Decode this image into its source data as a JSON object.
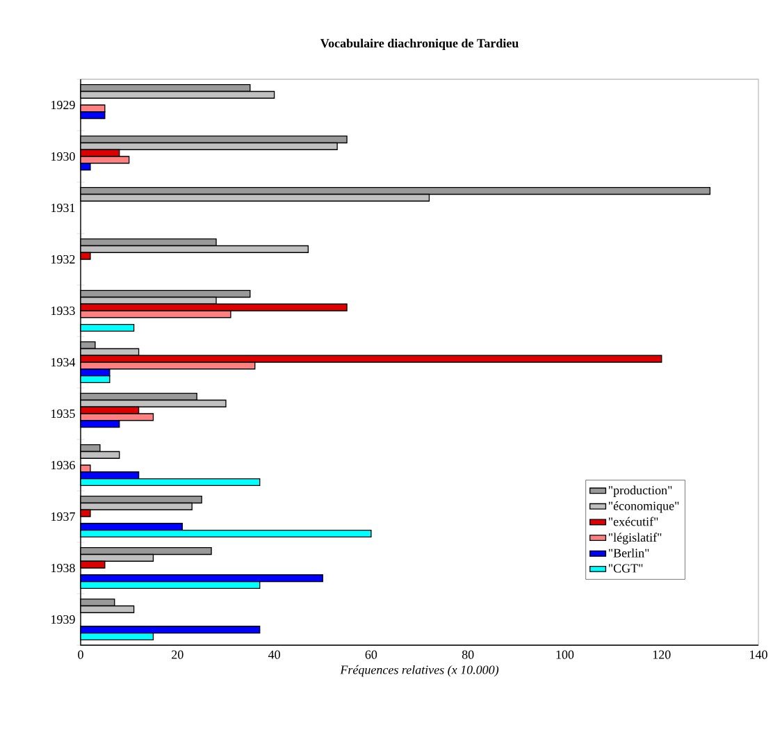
{
  "chart_data": {
    "type": "bar",
    "orientation": "horizontal",
    "title": "Vocabulaire diachronique de Tardieu",
    "xlabel": "Fréquences relatives (x 10.000)",
    "categories": [
      "1929",
      "1930",
      "1931",
      "1932",
      "1933",
      "1934",
      "1935",
      "1936",
      "1937",
      "1938",
      "1939"
    ],
    "series": [
      {
        "name": "\"production\"",
        "color": "#999999",
        "values": [
          35,
          55,
          130,
          28,
          35,
          3,
          24,
          4,
          25,
          27,
          7
        ]
      },
      {
        "name": "\"économique\"",
        "color": "#c0c0c0",
        "values": [
          40,
          53,
          72,
          47,
          28,
          12,
          30,
          8,
          23,
          15,
          11
        ]
      },
      {
        "name": "\"exécutif\"",
        "color": "#dd0000",
        "values": [
          null,
          8,
          null,
          2,
          55,
          120,
          12,
          null,
          2,
          5,
          null
        ]
      },
      {
        "name": "\"législatif\"",
        "color": "#ff8080",
        "values": [
          5,
          10,
          null,
          null,
          31,
          36,
          15,
          2,
          null,
          null,
          null
        ]
      },
      {
        "name": "\"Berlin\"",
        "color": "#0000ff",
        "values": [
          5,
          2,
          null,
          null,
          null,
          6,
          8,
          12,
          21,
          50,
          37
        ]
      },
      {
        "name": "\"CGT\"",
        "color": "#00ffff",
        "values": [
          null,
          null,
          null,
          null,
          11,
          6,
          null,
          37,
          60,
          37,
          15
        ]
      }
    ],
    "xlim": [
      0,
      140
    ],
    "xticks": [
      0,
      20,
      40,
      60,
      80,
      100,
      120,
      140
    ],
    "legend": "bottom right"
  }
}
